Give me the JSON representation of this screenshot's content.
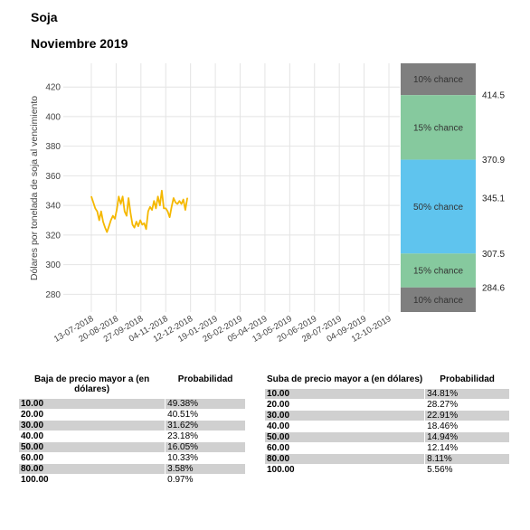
{
  "header": {
    "title": "Soja",
    "subtitle": "Noviembre 2019"
  },
  "chart_data": {
    "type": "line",
    "ylabel": "Dólares por tonelada de soja al vencimiento",
    "ylim": [
      268,
      436
    ],
    "yticks": [
      280,
      300,
      320,
      340,
      360,
      380,
      400,
      420
    ],
    "xticks": [
      "13-07-2018",
      "20-08-2018",
      "27-09-2018",
      "04-11-2018",
      "12-12-2018",
      "19-01-2019",
      "26-02-2019",
      "05-04-2019",
      "13-05-2019",
      "20-06-2019",
      "28-07-2019",
      "04-09-2019",
      "12-10-2019"
    ],
    "grid": true,
    "series": [
      {
        "color": "#f5b800",
        "points": [
          [
            "2018-07-13",
            346
          ],
          [
            "2018-07-16",
            342
          ],
          [
            "2018-07-19",
            338
          ],
          [
            "2018-07-22",
            336
          ],
          [
            "2018-07-25",
            330
          ],
          [
            "2018-07-28",
            336
          ],
          [
            "2018-07-31",
            329
          ],
          [
            "2018-08-03",
            325
          ],
          [
            "2018-08-06",
            322
          ],
          [
            "2018-08-09",
            326
          ],
          [
            "2018-08-12",
            330
          ],
          [
            "2018-08-15",
            333
          ],
          [
            "2018-08-18",
            331
          ],
          [
            "2018-08-21",
            337
          ],
          [
            "2018-08-24",
            346
          ],
          [
            "2018-08-27",
            341
          ],
          [
            "2018-08-30",
            346
          ],
          [
            "2018-09-02",
            336
          ],
          [
            "2018-09-05",
            333
          ],
          [
            "2018-09-08",
            345
          ],
          [
            "2018-09-11",
            335
          ],
          [
            "2018-09-14",
            327
          ],
          [
            "2018-09-17",
            325
          ],
          [
            "2018-09-20",
            329
          ],
          [
            "2018-09-23",
            326
          ],
          [
            "2018-09-26",
            330
          ],
          [
            "2018-09-29",
            327
          ],
          [
            "2018-10-02",
            328
          ],
          [
            "2018-10-05",
            324
          ],
          [
            "2018-10-08",
            336
          ],
          [
            "2018-10-11",
            339
          ],
          [
            "2018-10-14",
            337
          ],
          [
            "2018-10-17",
            343
          ],
          [
            "2018-10-20",
            338
          ],
          [
            "2018-10-23",
            346
          ],
          [
            "2018-10-26",
            340
          ],
          [
            "2018-10-29",
            350
          ],
          [
            "2018-11-01",
            338
          ],
          [
            "2018-11-04",
            338
          ],
          [
            "2018-11-07",
            336
          ],
          [
            "2018-11-10",
            332
          ],
          [
            "2018-11-13",
            339
          ],
          [
            "2018-11-16",
            345
          ],
          [
            "2018-11-19",
            342
          ],
          [
            "2018-11-22",
            341
          ],
          [
            "2018-11-25",
            343
          ],
          [
            "2018-11-28",
            341
          ],
          [
            "2018-12-01",
            344
          ],
          [
            "2018-12-04",
            337
          ],
          [
            "2018-12-07",
            345
          ]
        ]
      }
    ],
    "bands": [
      {
        "label": "10% chance",
        "from": 414.5,
        "to": 436,
        "color": "#7f7f7f"
      },
      {
        "label": "15% chance",
        "from": 370.9,
        "to": 414.5,
        "color": "#86c99e"
      },
      {
        "label": "50% chance",
        "from": 307.5,
        "to": 370.9,
        "color": "#5fc4ee"
      },
      {
        "label": "15% chance",
        "from": 284.6,
        "to": 307.5,
        "color": "#86c99e"
      },
      {
        "label": "10% chance",
        "from": 268,
        "to": 284.6,
        "color": "#7f7f7f"
      }
    ],
    "band_edges": [
      {
        "value": 414.5,
        "label": "414.5"
      },
      {
        "value": 370.9,
        "label": "370.9"
      },
      {
        "value": 345.1,
        "label": "345.1"
      },
      {
        "value": 307.5,
        "label": "307.5"
      },
      {
        "value": 284.6,
        "label": "284.6"
      }
    ]
  },
  "tables": {
    "baja": {
      "header_col1": "Baja de precio mayor a (en dólares)",
      "header_col2": "Probabilidad",
      "rows": [
        [
          "10.00",
          "49.38%"
        ],
        [
          "20.00",
          "40.51%"
        ],
        [
          "30.00",
          "31.62%"
        ],
        [
          "40.00",
          "23.18%"
        ],
        [
          "50.00",
          "16.05%"
        ],
        [
          "60.00",
          "10.33%"
        ],
        [
          "80.00",
          "3.58%"
        ],
        [
          "100.00",
          "0.97%"
        ]
      ]
    },
    "suba": {
      "header_col1": "Suba de precio mayor a (en dólares)",
      "header_col2": "Probabilidad",
      "rows": [
        [
          "10.00",
          "34.81%"
        ],
        [
          "20.00",
          "28.27%"
        ],
        [
          "30.00",
          "22.91%"
        ],
        [
          "40.00",
          "18.46%"
        ],
        [
          "50.00",
          "14.94%"
        ],
        [
          "60.00",
          "12.14%"
        ],
        [
          "80.00",
          "8.11%"
        ],
        [
          "100.00",
          "5.56%"
        ]
      ]
    }
  }
}
